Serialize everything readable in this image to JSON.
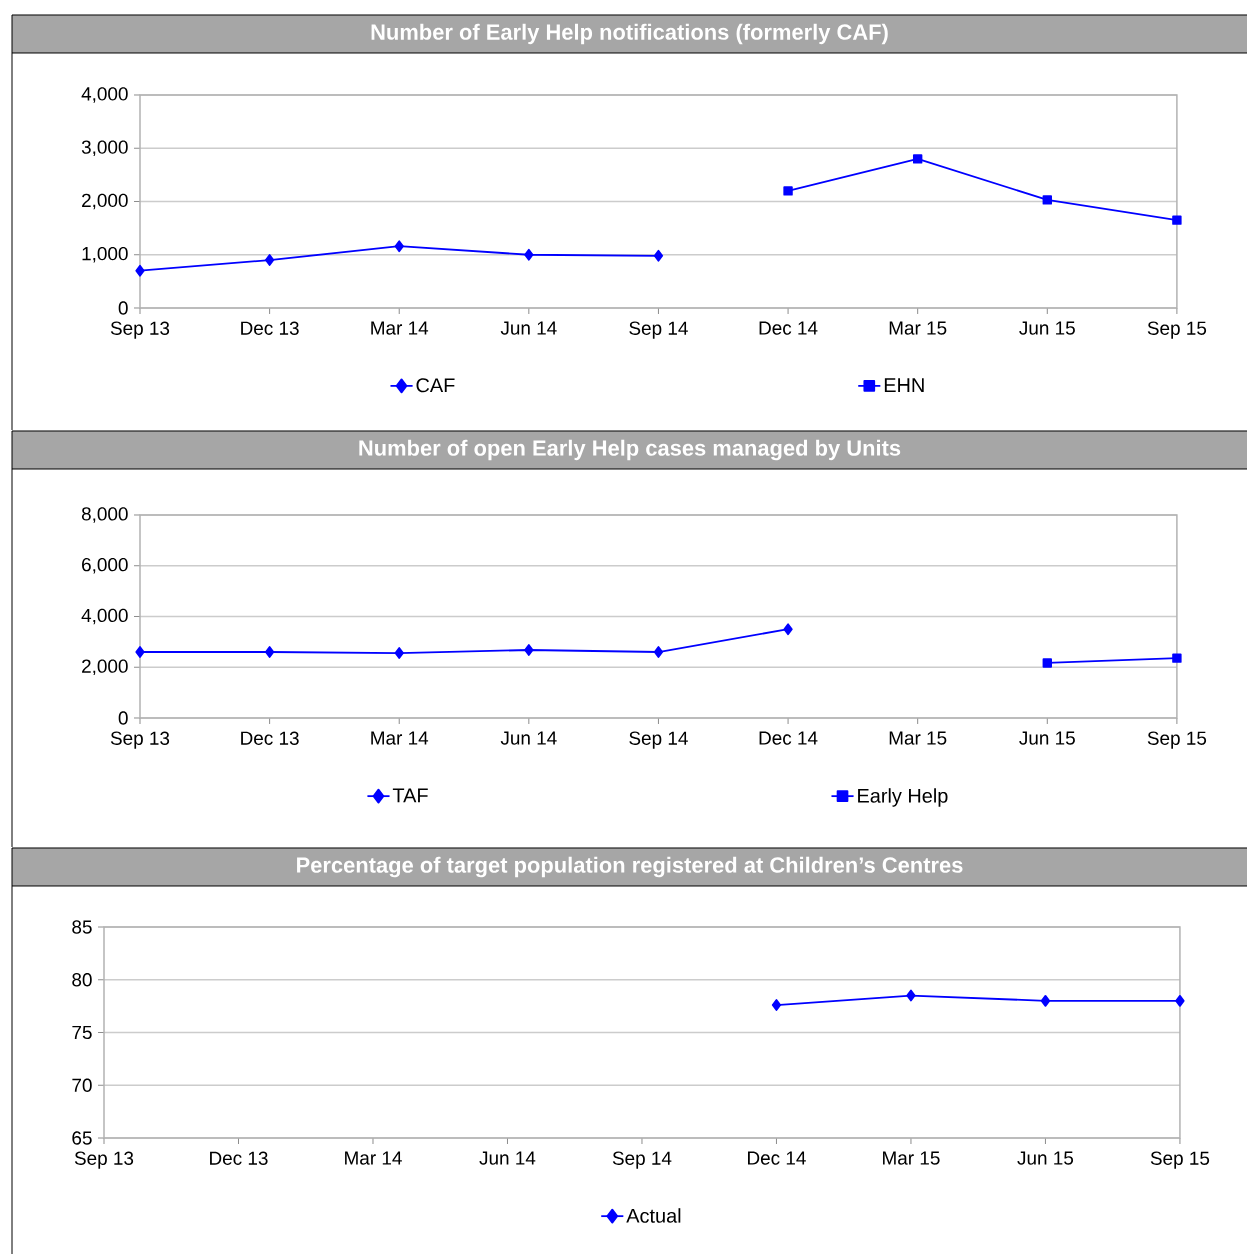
{
  "chart_data": [
    {
      "type": "line",
      "title": "Number of Early Help notifications (formerly CAF)",
      "categories": [
        "Sep 13",
        "Dec 13",
        "Mar 14",
        "Jun 14",
        "Sep 14",
        "Dec 14",
        "Mar 15",
        "Jun 15",
        "Sep 15"
      ],
      "series": [
        {
          "name": "CAF",
          "color": "#0000ff",
          "marker": "diamond",
          "values": [
            700,
            900,
            1160,
            1000,
            980,
            null,
            null,
            null,
            null
          ]
        },
        {
          "name": "EHN",
          "color": "#0000ff",
          "marker": "square",
          "values": [
            null,
            null,
            null,
            null,
            null,
            2200,
            2800,
            2030,
            1650
          ]
        }
      ],
      "ylim": [
        0,
        4000
      ],
      "yticks": [
        0,
        {
          "value": 1000,
          "label": "1,000"
        },
        {
          "value": 2000,
          "label": "2,000"
        },
        {
          "value": 3000,
          "label": "3,000"
        },
        {
          "value": 4000,
          "label": "4,000"
        }
      ],
      "grid": "y",
      "legend": "bottom"
    },
    {
      "type": "line",
      "title": "Number of open Early Help cases managed by Units",
      "categories": [
        "Sep 13",
        "Dec 13",
        "Mar 14",
        "Jun 14",
        "Sep 14",
        "Dec 14",
        "Mar 15",
        "Jun 15",
        "Sep 15"
      ],
      "series": [
        {
          "name": "TAF",
          "color": "#0000ff",
          "marker": "diamond",
          "values": [
            2600,
            2600,
            2560,
            2680,
            2600,
            3500,
            null,
            null,
            null
          ]
        },
        {
          "name": "Early Help",
          "color": "#0000ff",
          "marker": "square",
          "values": [
            null,
            null,
            null,
            null,
            null,
            null,
            null,
            2170,
            2360
          ]
        }
      ],
      "ylim": [
        0,
        8000
      ],
      "yticks": [
        0,
        {
          "value": 2000,
          "label": "2,000"
        },
        {
          "value": 4000,
          "label": "4,000"
        },
        {
          "value": 6000,
          "label": "6,000"
        },
        {
          "value": 8000,
          "label": "8,000"
        }
      ],
      "grid": "y",
      "legend": "bottom"
    },
    {
      "type": "line",
      "title": "Percentage of target population registered at Children’s Centres",
      "categories": [
        "Sep 13",
        "Dec 13",
        "Mar 14",
        "Jun 14",
        "Sep 14",
        "Dec 14",
        "Mar 15",
        "Jun 15",
        "Sep 15"
      ],
      "series": [
        {
          "name": "Actual",
          "color": "#0000ff",
          "marker": "diamond",
          "values": [
            null,
            null,
            null,
            null,
            null,
            77.6,
            78.5,
            78.0,
            78.0
          ]
        }
      ],
      "ylim": [
        65,
        85
      ],
      "yticks": [
        65,
        70,
        75,
        80,
        85
      ],
      "grid": "y",
      "legend": "bottom"
    }
  ]
}
